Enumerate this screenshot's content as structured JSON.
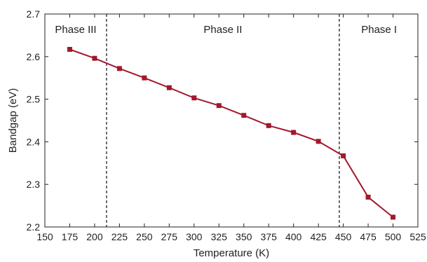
{
  "chart_data": {
    "type": "line",
    "title": "",
    "xlabel": "Temperature (K)",
    "ylabel": "Bandgap (eV)",
    "xlim": [
      150,
      525
    ],
    "ylim": [
      2.2,
      2.7
    ],
    "xticks": [
      "150",
      "175",
      "200",
      "225",
      "250",
      "275",
      "300",
      "325",
      "350",
      "375",
      "400",
      "425",
      "450",
      "475",
      "500",
      "525"
    ],
    "yticks": [
      "2.2",
      "2.3",
      "2.4",
      "2.5",
      "2.6",
      "2.7"
    ],
    "grid": false,
    "legend": "none",
    "series": [
      {
        "color": "#a3182b",
        "marker": "square",
        "x": [
          175,
          200,
          225,
          250,
          275,
          300,
          325,
          350,
          375,
          400,
          425,
          450,
          475,
          500
        ],
        "y": [
          2.617,
          2.596,
          2.572,
          2.55,
          2.527,
          2.503,
          2.485,
          2.462,
          2.438,
          2.422,
          2.401,
          2.367,
          2.27,
          2.223
        ]
      }
    ],
    "phase_boundaries": [
      212,
      446
    ],
    "phase_labels": [
      {
        "text": "Phase III",
        "x": 181
      },
      {
        "text": "Phase II",
        "x": 329
      },
      {
        "text": "Phase I",
        "x": 486
      }
    ]
  }
}
